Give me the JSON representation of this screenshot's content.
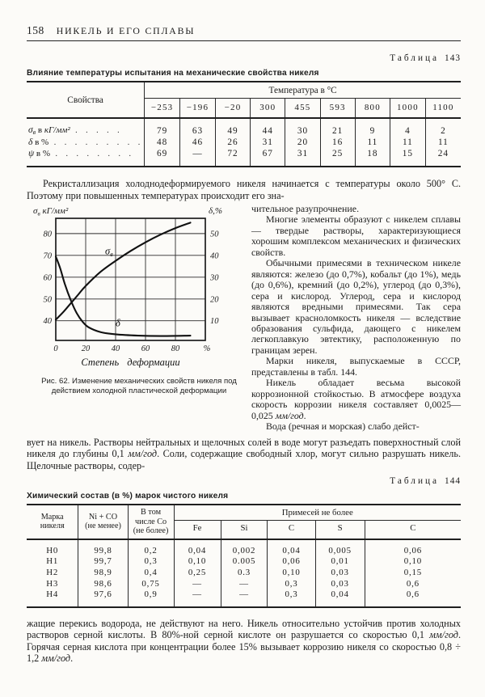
{
  "page": {
    "number": "158",
    "running_title": "НИКЕЛЬ И ЕГО СПЛАВЫ"
  },
  "table143": {
    "label_word": "Таблица",
    "label_num": "143",
    "caption": "Влияние температуры испытания на механические свойства никеля",
    "col_properties": "Свойства",
    "col_group": "Температура в °С",
    "temperatures": [
      "−253",
      "−196",
      "−20",
      "300",
      "455",
      "593",
      "800",
      "1000",
      "1100"
    ],
    "rows": [
      {
        "sym": "σ",
        "sub": "в",
        "rest_plain": "в ",
        "rest_it": "кГ/мм²",
        "dots": ". . . . .",
        "values": [
          "79",
          "63",
          "49",
          "44",
          "30",
          "21",
          "9",
          "4",
          "2"
        ]
      },
      {
        "sym": "δ",
        "sub": "",
        "rest_plain": "в %",
        "rest_it": "",
        "dots": ". . . . . . . . .",
        "values": [
          "48",
          "46",
          "26",
          "31",
          "20",
          "16",
          "11",
          "11",
          "11"
        ]
      },
      {
        "sym": "ψ",
        "sub": "",
        "rest_plain": "в %",
        "rest_it": "",
        "dots": ". . . . . . . .",
        "values": [
          "69",
          "—",
          "72",
          "67",
          "31",
          "25",
          "18",
          "15",
          "24"
        ]
      }
    ]
  },
  "text": {
    "p_recryst": "Рекристаллизация холоднодеформируемого никеля начинается с температуры около 500° С. Поэтому при повышенных температурах происходит его зна-",
    "rc_cont": "чительное разупрочнение.",
    "rc1": "Многие элементы образуют с никелем сплавы — твердые растворы, характеризующиеся хорошим комплексом механических и физических свойств.",
    "rc2": "Обычными примесями в техническом никеле являются: железо (до 0,7%), кобальт (до 1%), медь (до 0,6%), кремний (до 0,2%), углерод (до 0,3%), сера и кислород. Углерод, сера и кислород являются вредными примесями. Так сера вызывает красноломкость никеля — вследствие образования сульфида, дающего с никелем легкоплавкую эвтектику, расположенную по границам зерен.",
    "rc3": "Марки никеля, выпускаемые в СССР, представлены в табл. 144.",
    "rc4": [
      {
        "t": "Никель обладает весьма высокой коррозионной стойкостью. В атмосфере воздуха скорость коррозии никеля составляет 0,0025—0,025 ",
        "i": false
      },
      {
        "t": "мм/год",
        "i": true
      },
      {
        "t": ".",
        "i": false
      }
    ],
    "rc5": "Вода (речная и морская) слабо дейст-",
    "fw1": [
      {
        "t": "вует на никель. Растворы нейтральных и щелочных солей в воде могут разъедать поверхностный слой никеля до глубины 0,1 ",
        "i": false
      },
      {
        "t": "мм/год",
        "i": true
      },
      {
        "t": ". Соли, содержащие свободный хлор, могут сильно разрушать никель. Щелочные растворы, содер-",
        "i": false
      }
    ],
    "final": [
      {
        "t": "жащие перекись водорода, не действуют на него. Никель относительно устойчив против холодных растворов серной кислоты. В 80%-ной серной кислоте он разрушается со скоростью 0,1 ",
        "i": false
      },
      {
        "t": "мм/год",
        "i": true
      },
      {
        "t": ". Горячая серная кислота при концентрации более 15% вызывает коррозию никеля со скоростью 0,8 ÷ 1,2 ",
        "i": false
      },
      {
        "t": "мм/год",
        "i": true
      },
      {
        "t": ".",
        "i": false
      }
    ]
  },
  "figure62": {
    "caption": "Рис. 62. Изменение механических свойств никеля под действием холодной пластической деформации",
    "chart_data": {
      "type": "line",
      "x_label": "Степень деформации",
      "x_unit": "%",
      "x_ticks": [
        0,
        20,
        40,
        60,
        80
      ],
      "grid_x": [
        20,
        40,
        60,
        80
      ],
      "x_range": [
        0,
        100
      ],
      "left_axis_label": {
        "main": "σ",
        "sub": "в",
        "rest": " кГ/мм²"
      },
      "right_axis_label": "δ,%",
      "left_ticks": [
        40,
        50,
        60,
        70,
        80
      ],
      "right_ticks": [
        10,
        20,
        30,
        40,
        50
      ],
      "left_range": [
        31,
        87
      ],
      "right_axis_offset": 30,
      "series": [
        {
          "name_main": "σ",
          "name_sub": "в",
          "axis": "left",
          "label_at": [
            33,
            70.5
          ],
          "points": [
            [
              0,
              40.5
            ],
            [
              5,
              44
            ],
            [
              10,
              48
            ],
            [
              15,
              52
            ],
            [
              20,
              56
            ],
            [
              30,
              62.5
            ],
            [
              40,
              67.5
            ],
            [
              50,
              72
            ],
            [
              60,
              76
            ],
            [
              70,
              79.5
            ],
            [
              80,
              82.5
            ],
            [
              90,
              85
            ]
          ]
        },
        {
          "name_main": "δ",
          "name_sub": "",
          "axis": "right",
          "label_at": [
            40,
            7.5
          ],
          "points": [
            [
              0,
              39.5
            ],
            [
              3,
              34
            ],
            [
              6,
              27
            ],
            [
              10,
              19.5
            ],
            [
              14,
              13.5
            ],
            [
              18,
              9.5
            ],
            [
              22,
              7
            ],
            [
              30,
              4.8
            ],
            [
              40,
              3.8
            ],
            [
              55,
              3.2
            ],
            [
              70,
              3
            ],
            [
              90,
              3.2
            ]
          ]
        }
      ]
    }
  },
  "table144": {
    "label_word": "Таблица",
    "label_num": "144",
    "caption": "Химический состав (в %) марок чистого никеля",
    "col_grade": "Марка\nникеля",
    "col_ni": "Ni + CO\n(не менее)",
    "col_co": "В том\nчисле Со\n(не более)",
    "col_imp": "Примесей не более",
    "impurities": [
      "Fe",
      "Si",
      "C",
      "S",
      "C"
    ],
    "rows": [
      [
        "Н0",
        "99,8",
        "0,2",
        "0,04",
        "0,002",
        "0,04",
        "0,005",
        "0,06"
      ],
      [
        "Н1",
        "99,7",
        "0,3",
        "0,10",
        "0.005",
        "0,06",
        "0,01",
        "0,10"
      ],
      [
        "Н2",
        "98,9",
        "0,4",
        "0,25",
        "0.3",
        "0,10",
        "0,03",
        "0,15"
      ],
      [
        "Н3",
        "98,6",
        "0,75",
        "—",
        "—",
        "0,3",
        "0,03",
        "0,6"
      ],
      [
        "Н4",
        "97,6",
        "0,9",
        "—",
        "—",
        "0,3",
        "0,04",
        "0,6"
      ]
    ]
  }
}
